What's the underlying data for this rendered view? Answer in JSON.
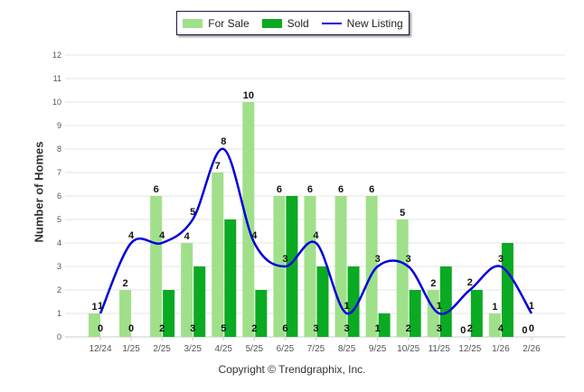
{
  "chart_data": {
    "type": "bar",
    "categories": [
      "12/24",
      "1/25",
      "2/25",
      "3/25",
      "4/25",
      "5/25",
      "6/25",
      "7/25",
      "8/25",
      "9/25",
      "10/25",
      "11/25",
      "12/25",
      "1/26",
      "2/26"
    ],
    "series": [
      {
        "name": "For Sale",
        "type": "bar",
        "color": "#a0e08a",
        "values": [
          1,
          2,
          6,
          4,
          7,
          10,
          6,
          6,
          6,
          6,
          5,
          2,
          0,
          1,
          0
        ]
      },
      {
        "name": "Sold",
        "type": "bar",
        "color": "#0aaa22",
        "values": [
          0,
          0,
          2,
          3,
          5,
          2,
          6,
          3,
          3,
          1,
          2,
          3,
          2,
          4,
          0
        ]
      },
      {
        "name": "New Listing",
        "type": "line",
        "color": "#0000dd",
        "values": [
          1,
          4,
          4,
          5,
          8,
          4,
          3,
          4,
          1,
          3,
          3,
          1,
          2,
          3,
          1
        ]
      }
    ],
    "xlabel": "",
    "ylabel": "Number of Homes",
    "ylim": [
      0,
      12
    ],
    "yticks": [
      0,
      1,
      2,
      3,
      4,
      5,
      6,
      7,
      8,
      9,
      10,
      11,
      12
    ],
    "grid": true,
    "legend_position": "top-center"
  },
  "footer": {
    "copyright": "Copyright © Trendgraphix, Inc."
  }
}
